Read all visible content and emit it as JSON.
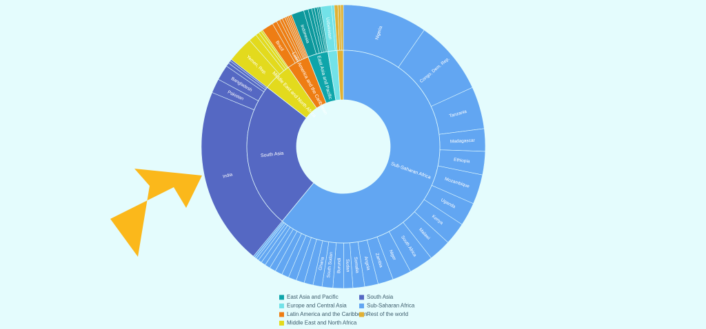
{
  "chart_data": {
    "type": "sunburst",
    "series": [
      {
        "name": "Sub-Saharan Africa",
        "color": "#62a6f2",
        "categories": [
          "Nigeria",
          "Congo, Dem. Rep.",
          "Tanzania",
          "Madagascar",
          "Ethiopia",
          "Mozambique",
          "Uganda",
          "Kenya",
          "Malawi",
          "South Africa",
          "Niger",
          "Zambia",
          "Angola",
          "Somalia",
          "Sudan",
          "Burundi",
          "South Sudan",
          "Ghana",
          null,
          null,
          null,
          null,
          null,
          null,
          null,
          null,
          null,
          null,
          null,
          null
        ],
        "values": [
          9.4,
          8.3,
          4.7,
          2.5,
          2.6,
          3.3,
          2.6,
          2.5,
          2.5,
          2.7,
          2.1,
          1.7,
          1.5,
          1.3,
          1.0,
          1.2,
          1.2,
          1.0,
          1.0,
          0.9,
          0.9,
          0.8,
          0.8,
          0.7,
          0.6,
          0.5,
          0.4,
          0.3,
          0.2,
          0.2
        ]
      },
      {
        "name": "South Asia",
        "color": "#5568c3",
        "categories": [
          "India",
          "Pakistan",
          "Bangladesh",
          null,
          null,
          null
        ],
        "values": [
          19.8,
          1.6,
          1.7,
          0.4,
          0.3,
          0.2
        ]
      },
      {
        "name": "Middle East and North Africa",
        "color": "#e3da1d",
        "categories": [
          "Yemen, Rep.",
          null,
          null,
          null,
          null
        ],
        "values": [
          2.9,
          0.9,
          0.4,
          0.3,
          0.2
        ]
      },
      {
        "name": "Latin America and the Caribbean",
        "color": "#ee7d13",
        "categories": [
          "Brazil",
          null,
          null,
          null,
          null,
          null,
          null,
          null,
          null
        ],
        "values": [
          1.3,
          0.5,
          0.4,
          0.3,
          0.3,
          0.2,
          0.2,
          0.2,
          0.2
        ]
      },
      {
        "name": "East Asia and Pacific",
        "color": "#0ea5aa",
        "categories": [
          "Indonesia",
          null,
          null,
          null,
          null,
          null,
          null
        ],
        "values": [
          1.4,
          0.5,
          0.4,
          0.3,
          0.3,
          0.2,
          0.2
        ]
      },
      {
        "name": "Europe and Central Asia",
        "color": "#72e2e8",
        "categories": [
          "Uzbekistan",
          null
        ],
        "values": [
          1.2,
          0.3
        ]
      },
      {
        "name": "Rest of the world",
        "color": "#e2b133",
        "categories": [
          null,
          null,
          null
        ],
        "values": [
          0.4,
          0.3,
          0.3
        ]
      }
    ]
  }
}
